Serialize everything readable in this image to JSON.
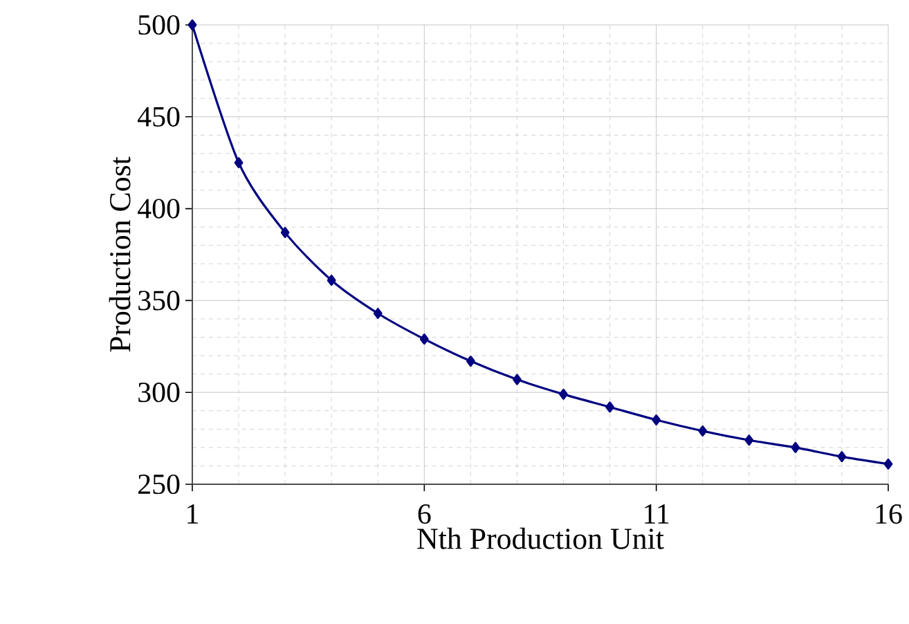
{
  "chart_data": {
    "type": "line",
    "xlabel": "Nth Production Unit",
    "ylabel": "Production Cost",
    "x": [
      1,
      2,
      3,
      4,
      5,
      6,
      7,
      8,
      9,
      10,
      11,
      12,
      13,
      14,
      15,
      16
    ],
    "series": [
      {
        "color": "#000080",
        "values": [
          500,
          425,
          387,
          361,
          343,
          329,
          317,
          307,
          299,
          292,
          285,
          279,
          274,
          270,
          265,
          261
        ]
      }
    ],
    "xlim": [
      1,
      16
    ],
    "ylim": [
      250,
      500
    ],
    "xticks": [
      1,
      6,
      11,
      16
    ],
    "yticks": [
      250,
      300,
      350,
      400,
      450,
      500
    ],
    "grid": true,
    "marker": "diamond",
    "line_style": "solid"
  }
}
